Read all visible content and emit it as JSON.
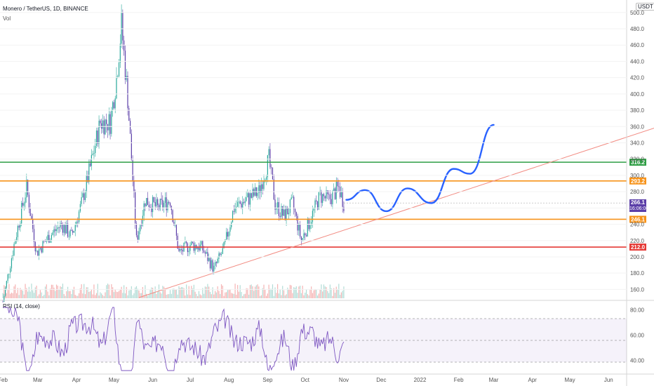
{
  "header": {
    "title": "Monero / TetherUS, 1D, BINANCE",
    "sub": "Vol",
    "currency": "USDT"
  },
  "rsi": {
    "title": "RSI (14, close)",
    "ticks": [
      "80.00",
      "60.00",
      "40.00"
    ]
  },
  "colors": {
    "up": "#26a69a",
    "down": "#5b3ea8",
    "accent": "#2962ff"
  },
  "current_price": {
    "value": "266.1",
    "time": "16:06:00",
    "color": "#5b3ea8"
  },
  "levels": [
    {
      "label": "316.2",
      "price": 316.2,
      "color": "#2e9e44"
    },
    {
      "label": "293.2",
      "price": 293.2,
      "color": "#f7931a"
    },
    {
      "label": "246.1",
      "price": 246.1,
      "color": "#f7931a"
    },
    {
      "label": "212.0",
      "price": 212.0,
      "color": "#e53935"
    }
  ],
  "chart_data": {
    "type": "line",
    "title": "Monero / TetherUS, 1D, BINANCE",
    "x_ticks": [
      "Feb",
      "Mar",
      "Apr",
      "May",
      "Jun",
      "Jul",
      "Aug",
      "Sep",
      "Oct",
      "Nov",
      "Dec",
      "2022",
      "Feb",
      "Mar",
      "Apr",
      "May",
      "Jun"
    ],
    "y_ticks": [
      500,
      480,
      460,
      440,
      420,
      400,
      380,
      360,
      340,
      320,
      300,
      280,
      260,
      240,
      220,
      200,
      180,
      160
    ],
    "ylim": [
      150,
      505
    ],
    "series": [
      {
        "values": [
          {
            "x": "2021-02-01",
            "y": 145
          },
          {
            "x": "2021-02-10",
            "y": 215
          },
          {
            "x": "2021-02-20",
            "y": 285
          },
          {
            "x": "2021-02-28",
            "y": 205
          },
          {
            "x": "2021-03-10",
            "y": 225
          },
          {
            "x": "2021-03-20",
            "y": 240
          },
          {
            "x": "2021-03-28",
            "y": 225
          },
          {
            "x": "2021-04-05",
            "y": 265
          },
          {
            "x": "2021-04-12",
            "y": 310
          },
          {
            "x": "2021-04-20",
            "y": 365
          },
          {
            "x": "2021-04-28",
            "y": 365
          },
          {
            "x": "2021-05-03",
            "y": 420
          },
          {
            "x": "2021-05-07",
            "y": 485
          },
          {
            "x": "2021-05-12",
            "y": 395
          },
          {
            "x": "2021-05-19",
            "y": 220
          },
          {
            "x": "2021-05-26",
            "y": 270
          },
          {
            "x": "2021-06-05",
            "y": 260
          },
          {
            "x": "2021-06-15",
            "y": 270
          },
          {
            "x": "2021-06-22",
            "y": 205
          },
          {
            "x": "2021-07-01",
            "y": 215
          },
          {
            "x": "2021-07-10",
            "y": 212
          },
          {
            "x": "2021-07-20",
            "y": 185
          },
          {
            "x": "2021-07-28",
            "y": 210
          },
          {
            "x": "2021-08-05",
            "y": 260
          },
          {
            "x": "2021-08-15",
            "y": 270
          },
          {
            "x": "2021-08-25",
            "y": 280
          },
          {
            "x": "2021-09-02",
            "y": 320
          },
          {
            "x": "2021-09-07",
            "y": 265
          },
          {
            "x": "2021-09-14",
            "y": 250
          },
          {
            "x": "2021-09-21",
            "y": 265
          },
          {
            "x": "2021-09-28",
            "y": 220
          },
          {
            "x": "2021-10-05",
            "y": 245
          },
          {
            "x": "2021-10-13",
            "y": 275
          },
          {
            "x": "2021-10-20",
            "y": 270
          },
          {
            "x": "2021-10-28",
            "y": 285
          },
          {
            "x": "2021-11-01",
            "y": 266.1
          }
        ]
      }
    ]
  }
}
